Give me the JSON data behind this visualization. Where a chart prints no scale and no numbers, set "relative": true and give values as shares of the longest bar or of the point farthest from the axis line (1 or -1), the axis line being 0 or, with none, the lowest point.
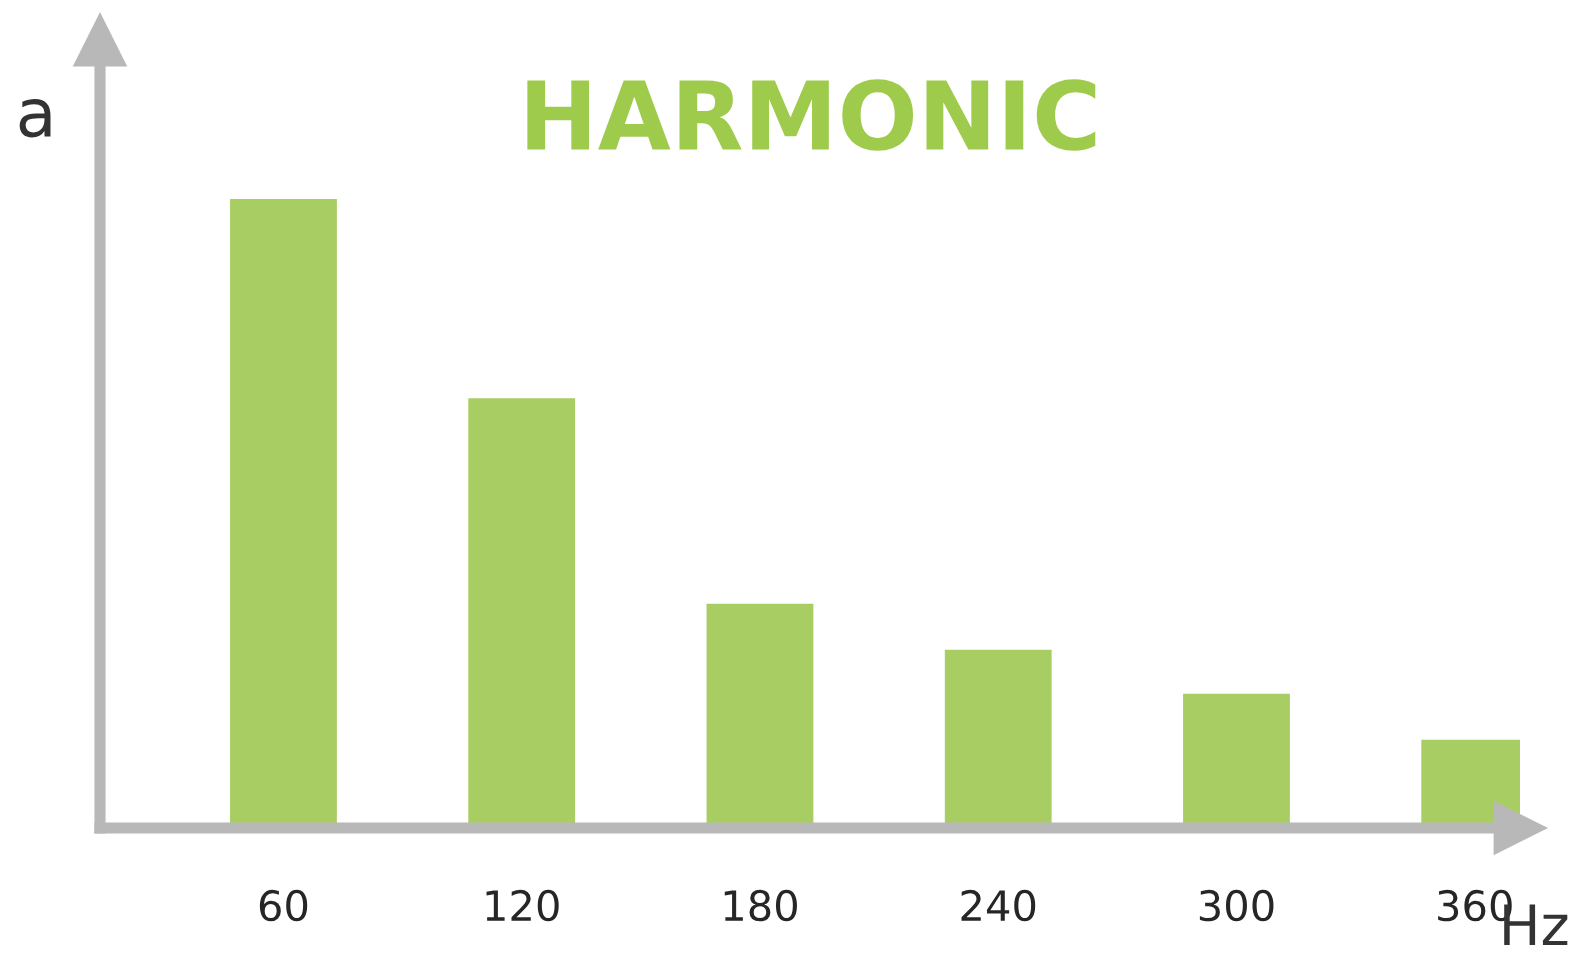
{
  "chart_data": {
    "type": "bar",
    "title": "HARMONIC",
    "xlabel": "Hz",
    "ylabel": "a",
    "categories": [
      "60",
      "120",
      "180",
      "240",
      "300",
      "360"
    ],
    "values": [
      1,
      0.684,
      0.358,
      0.285,
      0.215,
      0.142
    ],
    "color": "#a8cd62",
    "relative": true,
    "grid": false,
    "legend": false
  }
}
